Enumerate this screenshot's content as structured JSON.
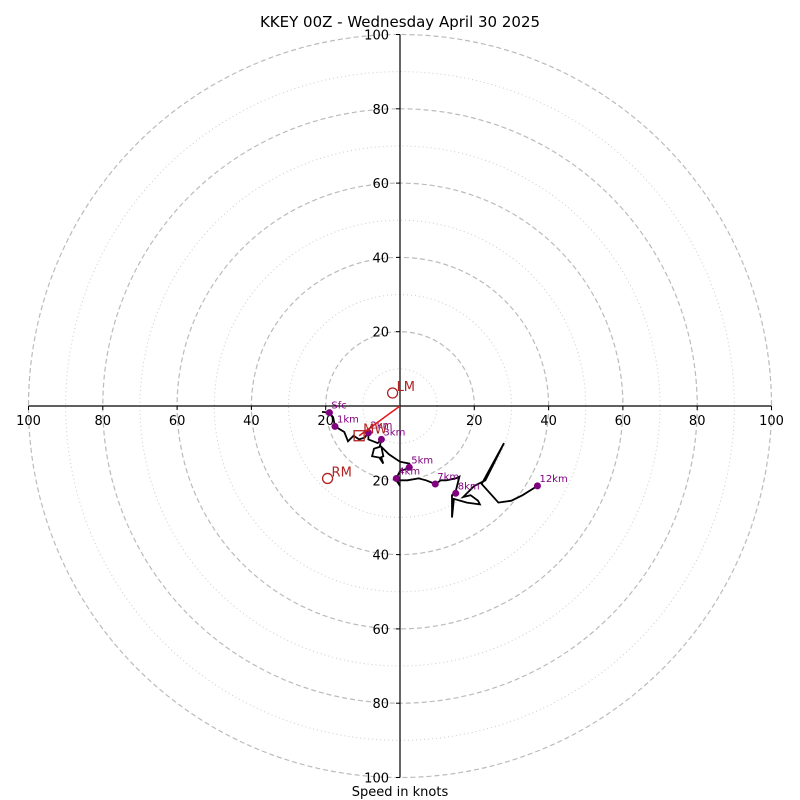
{
  "chart_data": {
    "type": "hodograph",
    "title": "KKEY 00Z - Wednesday April 30 2025",
    "xlabel": "Speed in knots",
    "xlim": [
      -100,
      100
    ],
    "ylim": [
      -100,
      100
    ],
    "major_rings": [
      20,
      40,
      60,
      80,
      100
    ],
    "minor_rings": [
      10,
      30,
      50,
      70,
      90
    ],
    "x_tick_labels": [
      "100",
      "80",
      "60",
      "40",
      "20",
      "20",
      "40",
      "60",
      "80",
      "100"
    ],
    "y_tick_labels": [
      "100",
      "80",
      "60",
      "40",
      "20",
      "20",
      "40",
      "60",
      "80",
      "100"
    ],
    "x_tick_values": [
      -100,
      -80,
      -60,
      -40,
      -20,
      20,
      40,
      60,
      80,
      100
    ],
    "y_tick_values": [
      100,
      80,
      60,
      40,
      20,
      -20,
      -40,
      -60,
      -80,
      -100
    ],
    "trace": [
      [
        -21,
        -1.6
      ],
      [
        -19,
        -1.8
      ],
      [
        -18,
        -3
      ],
      [
        -17.5,
        -5.5
      ],
      [
        -15,
        -7
      ],
      [
        -14,
        -9.5
      ],
      [
        -12.5,
        -8
      ],
      [
        -11,
        -9
      ],
      [
        -9.5,
        -8.5
      ],
      [
        -8.5,
        -7.2
      ],
      [
        -8.5,
        -9
      ],
      [
        -6,
        -10
      ],
      [
        -5,
        -9
      ],
      [
        -5.5,
        -11
      ],
      [
        -7,
        -11.5
      ],
      [
        -7.5,
        -13.5
      ],
      [
        -5,
        -14
      ],
      [
        -4.5,
        -15.5
      ],
      [
        -5.5,
        -14
      ],
      [
        -4.5,
        -13.5
      ],
      [
        -5,
        -11
      ],
      [
        -3,
        -13
      ],
      [
        -1.5,
        -14
      ],
      [
        0,
        -15
      ],
      [
        2.5,
        -15.5
      ],
      [
        3,
        -16.5
      ],
      [
        1.5,
        -17
      ],
      [
        0,
        -17.5
      ],
      [
        -1,
        -19.5
      ],
      [
        0,
        -21.5
      ],
      [
        -1,
        -20
      ],
      [
        2,
        -20
      ],
      [
        5,
        -19.5
      ],
      [
        7,
        -20
      ],
      [
        9.5,
        -21
      ],
      [
        11,
        -20
      ],
      [
        12.5,
        -20
      ],
      [
        15,
        -19.5
      ],
      [
        16,
        -19
      ],
      [
        15,
        -23
      ],
      [
        14,
        -24
      ],
      [
        14,
        -28
      ],
      [
        14,
        -30
      ],
      [
        14.5,
        -25
      ],
      [
        18,
        -26
      ],
      [
        21.5,
        -26.5
      ],
      [
        21,
        -25.5
      ],
      [
        19,
        -24
      ],
      [
        17,
        -24.5
      ],
      [
        20,
        -21.5
      ],
      [
        23,
        -20
      ],
      [
        28,
        -10
      ],
      [
        22,
        -21
      ],
      [
        26.5,
        -26
      ],
      [
        30,
        -25.5
      ],
      [
        33,
        -24
      ],
      [
        37,
        -21.5
      ]
    ],
    "height_labels": [
      {
        "label": "Sfc",
        "u": -19,
        "v": -1.8
      },
      {
        "label": "1km",
        "u": -17.5,
        "v": -5.5
      },
      {
        "label": "2km",
        "u": -8.5,
        "v": -7.2
      },
      {
        "label": "3km",
        "u": -5,
        "v": -9
      },
      {
        "label": "4km",
        "u": -1,
        "v": -19.5
      },
      {
        "label": "5km",
        "u": 2.5,
        "v": -16.5
      },
      {
        "label": "7km",
        "u": 9.5,
        "v": -21
      },
      {
        "label": "8km",
        "u": 15,
        "v": -23.5
      },
      {
        "label": "12km",
        "u": 37,
        "v": -21.5
      }
    ],
    "storm_motion": [
      {
        "label": "LM",
        "u": -2,
        "v": 3.5
      },
      {
        "label": "RM",
        "u": -19.5,
        "v": -19.5
      },
      {
        "label": "MW",
        "u": -11,
        "v": -8
      }
    ],
    "shear_vector": {
      "from": [
        0,
        0
      ],
      "to": [
        -11,
        -8
      ]
    },
    "colors": {
      "trace": "#000000",
      "height_marker": "#800080",
      "storm_motion": "#b22222",
      "shear_vector": "#e41a1c",
      "grid": "#bbbbbb"
    }
  }
}
